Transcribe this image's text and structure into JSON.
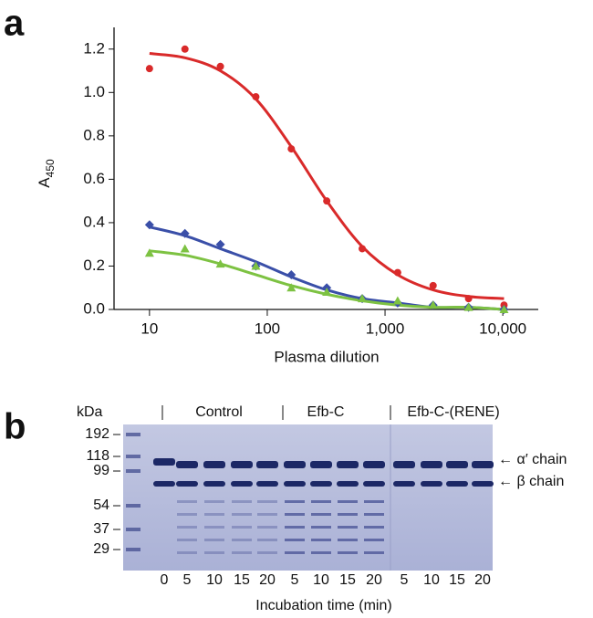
{
  "panels": [
    "a",
    "b"
  ],
  "chart_data": {
    "type": "scatter",
    "x_label": "Plasma dilution",
    "y_label": {
      "text": "A",
      "subscript": "450"
    },
    "x_scale": "log",
    "x": [
      10,
      20,
      40,
      80,
      160,
      320,
      640,
      1280,
      2560,
      5120,
      10240
    ],
    "xlim": [
      5,
      20000
    ],
    "xticks": [
      10,
      100,
      {
        "value": 1000,
        "label": "1,000"
      },
      {
        "value": 10000,
        "label": "10,000"
      }
    ],
    "ylim": [
      0,
      1.3
    ],
    "yticks": [
      {
        "value": 0,
        "label": "0.0"
      },
      0.2,
      0.4,
      0.6,
      0.8,
      {
        "value": 1,
        "label": "1.0"
      },
      1.2
    ],
    "series": [
      {
        "color": "#d92a2a",
        "marker": "circle",
        "values": [
          1.11,
          1.2,
          1.12,
          0.98,
          0.74,
          0.5,
          0.28,
          0.17,
          0.11,
          0.05,
          0.02
        ],
        "fit": [
          1.18,
          1.16,
          1.1,
          0.97,
          0.75,
          0.5,
          0.29,
          0.16,
          0.09,
          0.06,
          0.05
        ]
      },
      {
        "color": "#3a4fa8",
        "marker": "diamond",
        "values": [
          0.39,
          0.35,
          0.3,
          0.2,
          0.16,
          0.1,
          0.05,
          0.03,
          0.02,
          0.01,
          0
        ],
        "fit": [
          0.38,
          0.34,
          0.28,
          0.22,
          0.15,
          0.09,
          0.05,
          0.03,
          0.01,
          0.01,
          0
        ]
      },
      {
        "color": "#7dc242",
        "marker": "triangle",
        "values": [
          0.26,
          0.28,
          0.21,
          0.2,
          0.1,
          0.08,
          0.05,
          0.04,
          0.02,
          0.01,
          0
        ],
        "fit": [
          0.27,
          0.25,
          0.21,
          0.16,
          0.11,
          0.07,
          0.04,
          0.02,
          0.01,
          0.01,
          0
        ]
      }
    ]
  },
  "gel": {
    "unit": "kDa",
    "markers": [
      "192",
      "118",
      "99",
      "54",
      "37",
      "29"
    ],
    "groups": [
      "Control",
      "Efb-C",
      "Efb-C-(RENE)"
    ],
    "lanes": [
      "0",
      "5",
      "10",
      "15",
      "20",
      "5",
      "10",
      "15",
      "20",
      "5",
      "10",
      "15",
      "20"
    ],
    "bands": [
      "← α′ chain",
      "← β chain"
    ],
    "x_label": "Incubation time (min)"
  }
}
